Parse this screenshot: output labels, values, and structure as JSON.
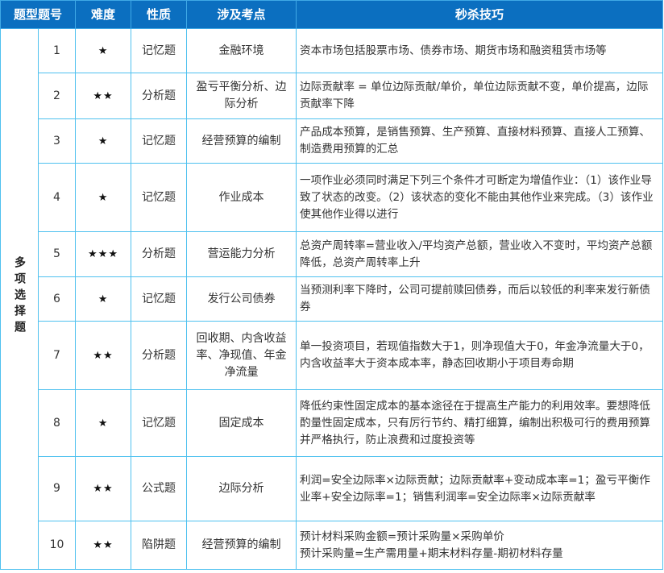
{
  "header": {
    "type_num": "题型题号",
    "difficulty": "难度",
    "nature": "性质",
    "topic": "涉及考点",
    "tips": "秒杀技巧"
  },
  "type_label": "多项选择题",
  "type_chars": [
    "多",
    "项",
    "选",
    "择",
    "题"
  ],
  "rows": [
    {
      "num": "1",
      "stars": "★",
      "nature": "记忆题",
      "topic": "金融环境",
      "tips": "资本市场包括股票市场、债券市场、期货市场和融资租赁市场等"
    },
    {
      "num": "2",
      "stars": "★★",
      "nature": "分析题",
      "topic": "盈亏平衡分析、边际分析",
      "tips": "边际贡献率 = 单位边际贡献/单价，单位边际贡献不变，单价提高，边际贡献率下降"
    },
    {
      "num": "3",
      "stars": "★",
      "nature": "记忆题",
      "topic": "经营预算的编制",
      "tips": "产品成本预算，是销售预算、生产预算、直接材料预算、直接人工预算、制造费用预算的汇总"
    },
    {
      "num": "4",
      "stars": "★",
      "nature": "记忆题",
      "topic": "作业成本",
      "tips": "一项作业必须同时满足下列三个条件才可断定为增值作业：（1）该作业导致了状态的改变。（2）该状态的变化不能由其他作业来完成。（3）该作业使其他作业得以进行"
    },
    {
      "num": "5",
      "stars": "★★★",
      "nature": "分析题",
      "topic": "营运能力分析",
      "tips": "总资产周转率=营业收入/平均资产总额，营业收入不变时，平均资产总额降低，总资产周转率上升"
    },
    {
      "num": "6",
      "stars": "★",
      "nature": "记忆题",
      "topic": "发行公司债券",
      "tips": "当预测利率下降时，公司可提前赎回债券，而后以较低的利率来发行新债券"
    },
    {
      "num": "7",
      "stars": "★★",
      "nature": "分析题",
      "topic": "回收期、内含收益率、净现值、年金净流量",
      "tips": "单一投资项目，若现值指数大于1，则净现值大于0，年金净流量大于0，内含收益率大于资本成本率，静态回收期小于项目寿命期"
    },
    {
      "num": "8",
      "stars": "★",
      "nature": "记忆题",
      "topic": "固定成本",
      "tips": "降低约束性固定成本的基本途径在于提高生产能力的利用效率。要想降低酌量性固定成本，只有厉行节约、精打细算，编制出积极可行的费用预算并严格执行，防止浪费和过度投资等"
    },
    {
      "num": "9",
      "stars": "★★",
      "nature": "公式题",
      "topic": "边际分析",
      "tips": "利润=安全边际率×边际贡献；边际贡献率+变动成本率=1；盈亏平衡作业率+安全边际率=1；销售利润率=安全边际率×边际贡献率"
    },
    {
      "num": "10",
      "stars": "★★",
      "nature": "陷阱题",
      "topic": "经营预算的编制",
      "tips": "预计材料采购金额=预计采购量×采购单价\n预计采购量=生产需用量+期末材料存量-期初材料存量"
    }
  ],
  "colors": {
    "header_bg": "#0b6fc0",
    "border": "#4fc1ef"
  }
}
